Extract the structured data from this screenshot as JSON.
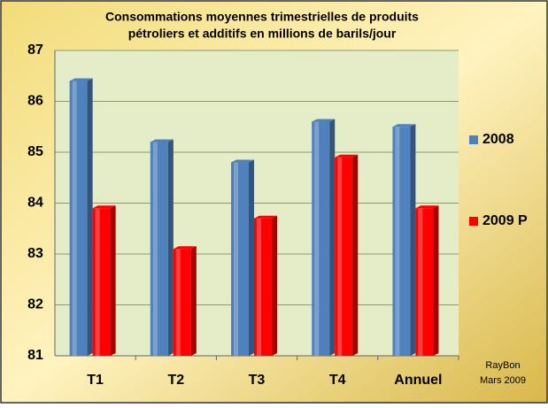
{
  "chart_data": {
    "type": "bar",
    "title": [
      "Consommations moyennes trimestrielles  de produits",
      "pétroliers et additifs en millions de barils/jour"
    ],
    "categories": [
      "T1",
      "T2",
      "T3",
      "T4",
      "Annuel"
    ],
    "series": [
      {
        "name": "2008",
        "color": "#4f81bd",
        "values": [
          86.4,
          85.2,
          84.8,
          85.6,
          85.5
        ]
      },
      {
        "name": "2009 P",
        "color": "#ff0000",
        "values": [
          83.9,
          83.1,
          83.7,
          84.9,
          83.9
        ]
      }
    ],
    "ylim": [
      81,
      87
    ],
    "yticks": [
      81,
      82,
      83,
      84,
      85,
      86,
      87
    ],
    "grid": true,
    "legend": "right",
    "annotations": [
      "RayBon",
      "Mars 2009"
    ]
  }
}
